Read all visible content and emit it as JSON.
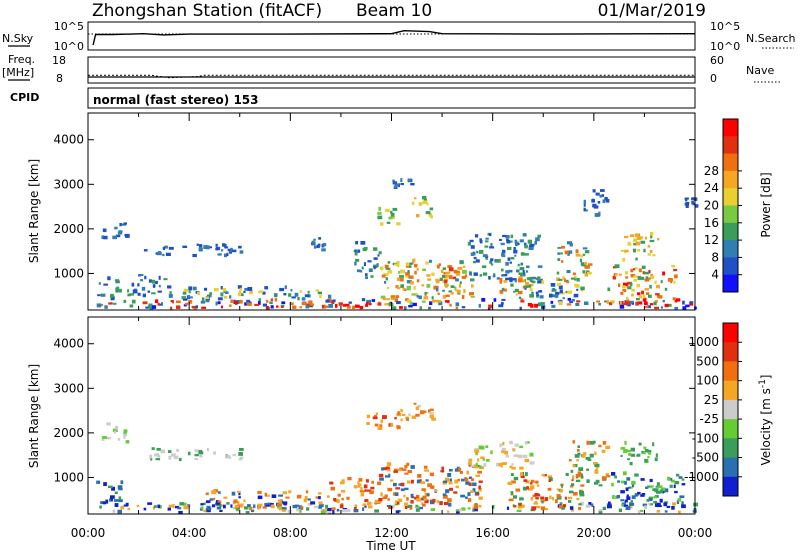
{
  "header": {
    "station": "Zhongshan Station (fitACF)",
    "beam": "Beam 10",
    "date": "01/Mar/2019"
  },
  "top_panels": {
    "nsky_label": "N.Sky",
    "nsky_ticks": [
      "10^5",
      "10^0"
    ],
    "nsearch_label": "N.Search",
    "nsearch_ticks": [
      "10^5",
      "10^0"
    ],
    "freq_label": "Freq.",
    "freq_unit": "[MHz]",
    "freq_ticks": [
      "18",
      "8"
    ],
    "nave_label": "Nave",
    "nave_ticks": [
      "60",
      "0"
    ],
    "cpid_label": "CPID",
    "cpid_text": "normal (fast stereo) 153"
  },
  "chart_data": [
    {
      "type": "heatmap",
      "name": "power",
      "xlabel": "",
      "ylabel": "Slant Range [km]",
      "xlim": [
        0,
        24
      ],
      "ylim": [
        180,
        4600
      ],
      "yticks": [
        "1000",
        "2000",
        "3000",
        "4000"
      ],
      "colorbar": {
        "label": "Power [dB]",
        "ticks": [
          "4",
          "8",
          "12",
          "16",
          "20",
          "24",
          "28"
        ],
        "colors": [
          "#1010ff",
          "#2050c8",
          "#2f7fb0",
          "#3a9e5a",
          "#7ac943",
          "#e8d030",
          "#f5a623",
          "#f07010",
          "#e03010",
          "#ff0000"
        ]
      },
      "blobs": [
        {
          "t0": 0.3,
          "t1": 24,
          "r0": 220,
          "r1": 420,
          "c": [
            0,
            1,
            2,
            3,
            7,
            8,
            9
          ]
        },
        {
          "t0": 0.3,
          "t1": 1.2,
          "r0": 400,
          "r1": 900,
          "c": [
            1,
            2,
            3
          ]
        },
        {
          "t0": 0.5,
          "t1": 1.5,
          "r0": 1800,
          "r1": 2200,
          "c": [
            1,
            2
          ]
        },
        {
          "t0": 2.2,
          "t1": 6.2,
          "r0": 1400,
          "r1": 1650,
          "c": [
            1,
            2
          ]
        },
        {
          "t0": 1.5,
          "t1": 3.0,
          "r0": 500,
          "r1": 1000,
          "c": [
            1,
            2,
            3
          ]
        },
        {
          "t0": 3.0,
          "t1": 9.5,
          "r0": 420,
          "r1": 700,
          "c": [
            1,
            2,
            3,
            5
          ]
        },
        {
          "t0": 5.0,
          "t1": 11.5,
          "r0": 230,
          "r1": 330,
          "c": [
            7,
            8,
            9
          ]
        },
        {
          "t0": 8.8,
          "t1": 9.4,
          "r0": 1500,
          "r1": 1800,
          "c": [
            1,
            2
          ]
        },
        {
          "t0": 10.5,
          "t1": 11.5,
          "r0": 900,
          "r1": 1700,
          "c": [
            1,
            2,
            3
          ]
        },
        {
          "t0": 11.2,
          "t1": 12.2,
          "r0": 2100,
          "r1": 2500,
          "c": [
            1,
            3,
            4,
            5
          ]
        },
        {
          "t0": 12.0,
          "t1": 12.8,
          "r0": 2900,
          "r1": 3100,
          "c": [
            1,
            2
          ]
        },
        {
          "t0": 12.8,
          "t1": 13.6,
          "r0": 2200,
          "r1": 2700,
          "c": [
            3,
            5,
            6
          ]
        },
        {
          "t0": 11.5,
          "t1": 15.2,
          "r0": 300,
          "r1": 1300,
          "c": [
            2,
            3,
            4,
            5,
            6,
            7
          ]
        },
        {
          "t0": 14.0,
          "t1": 14.8,
          "r0": 700,
          "r1": 1100,
          "c": [
            6,
            7,
            8
          ]
        },
        {
          "t0": 15.0,
          "t1": 17.8,
          "r0": 800,
          "r1": 1900,
          "c": [
            1,
            2,
            3
          ]
        },
        {
          "t0": 16.2,
          "t1": 17.6,
          "r0": 500,
          "r1": 1000,
          "c": [
            3,
            5,
            6,
            7
          ]
        },
        {
          "t0": 17.0,
          "t1": 19.5,
          "r0": 300,
          "r1": 900,
          "c": [
            1,
            2,
            3,
            5
          ]
        },
        {
          "t0": 18.5,
          "t1": 19.8,
          "r0": 800,
          "r1": 1700,
          "c": [
            2,
            3,
            5,
            6,
            7
          ]
        },
        {
          "t0": 19.5,
          "t1": 20.5,
          "r0": 2300,
          "r1": 2900,
          "c": [
            1,
            2
          ]
        },
        {
          "t0": 20.5,
          "t1": 23.2,
          "r0": 300,
          "r1": 1200,
          "c": [
            3,
            5,
            6,
            7,
            8,
            9
          ]
        },
        {
          "t0": 21.0,
          "t1": 22.5,
          "r0": 1300,
          "r1": 1900,
          "c": [
            3,
            5,
            6
          ]
        },
        {
          "t0": 23.5,
          "t1": 24,
          "r0": 2500,
          "r1": 2700,
          "c": [
            1
          ]
        }
      ]
    },
    {
      "type": "heatmap",
      "name": "velocity",
      "xlabel": "Time UT",
      "ylabel": "Slant Range [km]",
      "xlim": [
        0,
        24
      ],
      "ylim": [
        180,
        4600
      ],
      "xticks": [
        "00:00",
        "04:00",
        "08:00",
        "12:00",
        "16:00",
        "20:00",
        "00:00"
      ],
      "yticks": [
        "1000",
        "2000",
        "3000",
        "4000"
      ],
      "colorbar": {
        "label": "Velocity [m s^-1]",
        "ticks": [
          "1000",
          "500",
          "100",
          "25",
          "-25",
          "-100",
          "-500",
          "-1000"
        ],
        "colors": [
          "#1020d0",
          "#2a6fb0",
          "#3a9e5a",
          "#66cc33",
          "#cccccc",
          "#f5a623",
          "#f07010",
          "#e03010",
          "#ff0000"
        ]
      },
      "blobs": [
        {
          "t0": 0.3,
          "t1": 24,
          "r0": 220,
          "r1": 420,
          "c": [
            0,
            1,
            2,
            3,
            4,
            5
          ]
        },
        {
          "t0": 0.3,
          "t1": 1.3,
          "r0": 400,
          "r1": 900,
          "c": [
            0,
            1,
            2
          ]
        },
        {
          "t0": 0.5,
          "t1": 1.5,
          "r0": 1800,
          "r1": 2200,
          "c": [
            4,
            4,
            3
          ]
        },
        {
          "t0": 2.2,
          "t1": 6.2,
          "r0": 1400,
          "r1": 1650,
          "c": [
            4,
            4,
            2
          ]
        },
        {
          "t0": 4.5,
          "t1": 9.5,
          "r0": 300,
          "r1": 700,
          "c": [
            0,
            1,
            5,
            6
          ]
        },
        {
          "t0": 9.5,
          "t1": 11.5,
          "r0": 300,
          "r1": 1000,
          "c": [
            5,
            6,
            7
          ]
        },
        {
          "t0": 11.0,
          "t1": 12.5,
          "r0": 2100,
          "r1": 2500,
          "c": [
            5,
            6,
            7
          ]
        },
        {
          "t0": 12.5,
          "t1": 13.6,
          "r0": 2300,
          "r1": 2700,
          "c": [
            4,
            5,
            6
          ]
        },
        {
          "t0": 11.5,
          "t1": 15.5,
          "r0": 300,
          "r1": 1300,
          "c": [
            5,
            6,
            7,
            1
          ]
        },
        {
          "t0": 15.0,
          "t1": 17.5,
          "r0": 1200,
          "r1": 1800,
          "c": [
            4,
            5,
            3
          ]
        },
        {
          "t0": 16.5,
          "t1": 19.5,
          "r0": 300,
          "r1": 1100,
          "c": [
            5,
            6,
            7,
            2
          ]
        },
        {
          "t0": 19.0,
          "t1": 20.5,
          "r0": 800,
          "r1": 1800,
          "c": [
            5,
            6,
            2
          ]
        },
        {
          "t0": 20.5,
          "t1": 23.5,
          "r0": 300,
          "r1": 1100,
          "c": [
            2,
            3,
            1,
            0
          ]
        },
        {
          "t0": 21.0,
          "t1": 22.5,
          "r0": 1300,
          "r1": 1800,
          "c": [
            2,
            3
          ]
        }
      ]
    }
  ],
  "series_top": {
    "nsky": [
      [
        0.2,
        0
      ],
      [
        0.3,
        2.5
      ],
      [
        1,
        2.5
      ],
      [
        2.2,
        2.7
      ],
      [
        3,
        2.4
      ],
      [
        4,
        2.6
      ],
      [
        8,
        2.6
      ],
      [
        12,
        2.7
      ],
      [
        12.5,
        3.4
      ],
      [
        13.5,
        3.2
      ],
      [
        14,
        2.7
      ],
      [
        18,
        2.6
      ],
      [
        24,
        2.7
      ]
    ],
    "freq": [
      [
        0,
        10.5
      ],
      [
        2.5,
        10.5
      ],
      [
        3.2,
        9.2
      ],
      [
        4.3,
        9.8
      ],
      [
        4.6,
        10.5
      ],
      [
        24,
        10.5
      ]
    ]
  }
}
